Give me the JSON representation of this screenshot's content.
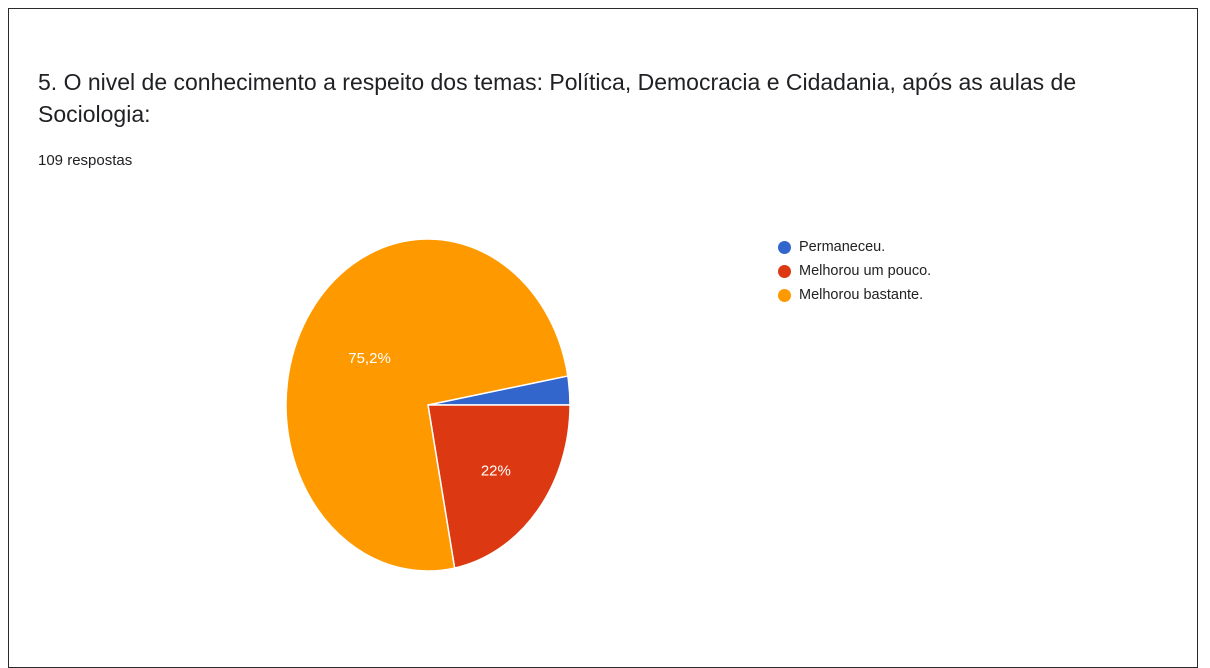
{
  "question": {
    "title": "5. O nivel de conhecimento a respeito dos temas: Política, Democracia e Cidadania, após as aulas de Sociologia:",
    "responses": "109 respostas"
  },
  "chart_data": {
    "type": "pie",
    "title": "",
    "total_responses": 109,
    "slices": [
      {
        "label": "Permaneceu.",
        "value": 2.8,
        "color": "#3366cc",
        "data_label": ""
      },
      {
        "label": "Melhorou um pouco.",
        "value": 22.0,
        "color": "#dc3912",
        "data_label": "22%"
      },
      {
        "label": "Melhorou bastante.",
        "value": 75.2,
        "color": "#ff9900",
        "data_label": "75,2%"
      }
    ],
    "legend_position": "right"
  }
}
